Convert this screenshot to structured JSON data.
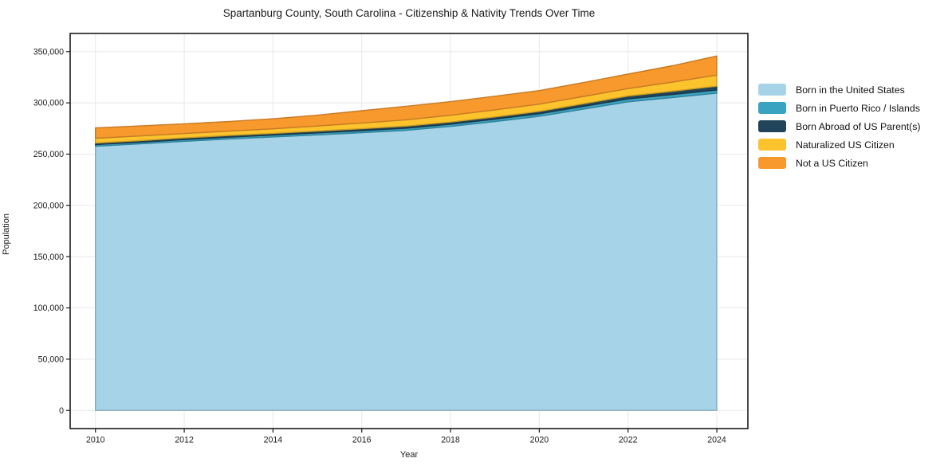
{
  "chart_data": {
    "type": "area",
    "stacked": true,
    "title": "Spartanburg County, South Carolina - Citizenship & Nativity Trends Over Time",
    "xlabel": "Year",
    "ylabel": "Population",
    "x": [
      2010,
      2011,
      2012,
      2013,
      2014,
      2015,
      2016,
      2017,
      2018,
      2019,
      2020,
      2021,
      2022,
      2023,
      2024
    ],
    "series": [
      {
        "name": "Born in the United States",
        "color": "#A6D3E8",
        "values": [
          257700,
          260000,
          262500,
          264800,
          266800,
          268800,
          270900,
          273200,
          277000,
          281800,
          287000,
          294000,
          301000,
          305200,
          309500
        ]
      },
      {
        "name": "Born in Puerto Rico / Islands",
        "color": "#3BA3C2",
        "values": [
          1600,
          1650,
          1700,
          1750,
          1800,
          1900,
          2000,
          2100,
          2200,
          2300,
          2400,
          2600,
          2800,
          2900,
          3000
        ]
      },
      {
        "name": "Born Abroad of US Parent(s)",
        "color": "#20455A",
        "values": [
          1500,
          1550,
          1600,
          1650,
          1700,
          1800,
          1900,
          2000,
          2100,
          2200,
          2300,
          2600,
          2900,
          3300,
          3800
        ]
      },
      {
        "name": "Naturalized US Citizen",
        "color": "#FCC32D",
        "values": [
          4700,
          4500,
          4300,
          4200,
          4400,
          4900,
          5600,
          6200,
          6600,
          6900,
          7100,
          7100,
          7200,
          8800,
          10800
        ]
      },
      {
        "name": "Not a US Citizen",
        "color": "#F8992D",
        "values": [
          10100,
          9800,
          9500,
          9400,
          9800,
          10600,
          11900,
          13200,
          13300,
          13300,
          13200,
          13500,
          14200,
          16000,
          18600
        ]
      }
    ],
    "xticks": {
      "values": [
        2010,
        2012,
        2014,
        2016,
        2018,
        2020,
        2022,
        2024
      ],
      "labels": [
        "2010",
        "2012",
        "2014",
        "2016",
        "2018",
        "2020",
        "2022",
        "2024"
      ]
    },
    "yticks": {
      "values": [
        0,
        50000,
        100000,
        150000,
        200000,
        250000,
        300000,
        350000
      ],
      "labels": [
        "0",
        "50,000",
        "100,000",
        "150,000",
        "200,000",
        "250,000",
        "300,000",
        "350,000"
      ]
    },
    "xlim": [
      2009.43,
      2024.7
    ],
    "ylim": [
      -17700,
      367700
    ],
    "grid": true,
    "grid_color": "#e8e8e8",
    "axis_color": "#1a1a1a",
    "legend_position": "right of plot, no frame"
  }
}
